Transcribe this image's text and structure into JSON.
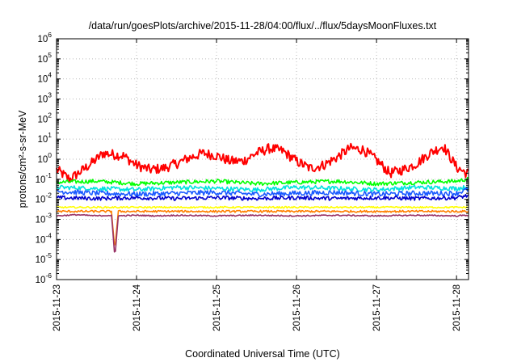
{
  "chart_data": {
    "type": "line",
    "title": "/data/run/goesPlots/archive/2015-11-28/04:00/flux/../flux/5daysMoonFluxes.txt",
    "xlabel": "Coordinated Universal Time (UTC)",
    "ylabel": "protons/cm²-s-sr-MeV",
    "y_scale": "log",
    "ylim": [
      1e-06,
      1000000.0
    ],
    "xlim_days_from_start": [
      0,
      5.15
    ],
    "y_ticks": [
      {
        "value": -6,
        "base": "10",
        "exp": "-6"
      },
      {
        "value": -5,
        "base": "10",
        "exp": "-5"
      },
      {
        "value": -4,
        "base": "10",
        "exp": "-4"
      },
      {
        "value": -3,
        "base": "10",
        "exp": "-3"
      },
      {
        "value": -2,
        "base": "10",
        "exp": "-2"
      },
      {
        "value": -1,
        "base": "10",
        "exp": "-1"
      },
      {
        "value": 0,
        "base": "10",
        "exp": "0"
      },
      {
        "value": 1,
        "base": "10",
        "exp": "1"
      },
      {
        "value": 2,
        "base": "10",
        "exp": "2"
      },
      {
        "value": 3,
        "base": "10",
        "exp": "3"
      },
      {
        "value": 4,
        "base": "10",
        "exp": "4"
      },
      {
        "value": 5,
        "base": "10",
        "exp": "5"
      },
      {
        "value": 6,
        "base": "10",
        "exp": "6"
      }
    ],
    "x_ticks": [
      "2015-11-23",
      "2015-11-24",
      "2015-11-25",
      "2015-11-26",
      "2015-11-27",
      "2015-11-28"
    ],
    "grid": true,
    "series": [
      {
        "color": "#ff0000",
        "x": [
          "2015-11-23 00:00",
          "2015-11-23 04:00",
          "2015-11-23 08:00",
          "2015-11-23 12:00",
          "2015-11-23 14:00",
          "2015-11-23 16:00",
          "2015-11-23 20:00",
          "2015-11-24 00:00",
          "2015-11-24 04:00",
          "2015-11-24 08:00",
          "2015-11-24 12:00",
          "2015-11-24 16:00",
          "2015-11-24 20:00",
          "2015-11-25 00:00",
          "2015-11-25 04:00",
          "2015-11-25 08:00",
          "2015-11-25 12:00",
          "2015-11-25 16:00",
          "2015-11-25 20:00",
          "2015-11-26 00:00",
          "2015-11-26 04:00",
          "2015-11-26 08:00",
          "2015-11-26 12:00",
          "2015-11-26 16:00",
          "2015-11-26 20:00",
          "2015-11-27 00:00",
          "2015-11-27 04:00",
          "2015-11-27 08:00",
          "2015-11-27 12:00",
          "2015-11-27 16:00",
          "2015-11-27 20:00",
          "2015-11-28 00:00",
          "2015-11-28 03:00"
        ],
        "values": [
          0.3,
          0.1,
          0.3,
          1.0,
          2.0,
          1.8,
          1.5,
          0.5,
          0.3,
          0.35,
          0.6,
          1.2,
          2.0,
          1.5,
          0.8,
          0.8,
          2.0,
          3.5,
          2.5,
          0.8,
          0.35,
          0.5,
          1.2,
          3.5,
          3.0,
          0.9,
          0.2,
          0.3,
          0.6,
          2.0,
          4.5,
          0.4,
          0.2
        ]
      },
      {
        "color": "#00ff00",
        "x": [
          "2015-11-23 00:00",
          "2015-11-23 12:00",
          "2015-11-24 00:00",
          "2015-11-24 12:00",
          "2015-11-25 00:00",
          "2015-11-25 12:00",
          "2015-11-26 00:00",
          "2015-11-26 12:00",
          "2015-11-27 00:00",
          "2015-11-27 12:00",
          "2015-11-28 00:00",
          "2015-11-28 03:00"
        ],
        "values": [
          0.07,
          0.08,
          0.06,
          0.07,
          0.08,
          0.06,
          0.07,
          0.08,
          0.06,
          0.07,
          0.08,
          0.1
        ]
      },
      {
        "color": "#00e0e0",
        "x": [
          "2015-11-23 00:00",
          "2015-11-23 12:00",
          "2015-11-24 00:00",
          "2015-11-24 12:00",
          "2015-11-25 00:00",
          "2015-11-25 12:00",
          "2015-11-26 00:00",
          "2015-11-26 12:00",
          "2015-11-27 00:00",
          "2015-11-27 12:00",
          "2015-11-28 00:00",
          "2015-11-28 03:00"
        ],
        "values": [
          0.04,
          0.035,
          0.03,
          0.04,
          0.035,
          0.03,
          0.04,
          0.035,
          0.03,
          0.04,
          0.035,
          0.04
        ]
      },
      {
        "color": "#1a5aff",
        "x": [
          "2015-11-23 00:00",
          "2015-11-23 12:00",
          "2015-11-24 00:00",
          "2015-11-24 12:00",
          "2015-11-25 00:00",
          "2015-11-25 12:00",
          "2015-11-26 00:00",
          "2015-11-26 12:00",
          "2015-11-27 00:00",
          "2015-11-27 12:00",
          "2015-11-28 00:00",
          "2015-11-28 03:00"
        ],
        "values": [
          0.025,
          0.02,
          0.018,
          0.02,
          0.022,
          0.018,
          0.02,
          0.022,
          0.018,
          0.02,
          0.02,
          0.03
        ]
      },
      {
        "color": "#0000cc",
        "x": [
          "2015-11-23 00:00",
          "2015-11-23 12:00",
          "2015-11-24 00:00",
          "2015-11-24 12:00",
          "2015-11-25 00:00",
          "2015-11-25 12:00",
          "2015-11-26 00:00",
          "2015-11-26 12:00",
          "2015-11-27 00:00",
          "2015-11-27 12:00",
          "2015-11-28 00:00",
          "2015-11-28 03:00"
        ],
        "values": [
          0.012,
          0.011,
          0.012,
          0.011,
          0.012,
          0.011,
          0.012,
          0.011,
          0.012,
          0.011,
          0.012,
          0.015
        ]
      },
      {
        "color": "#ffff00",
        "x": [
          "2015-11-23 00:00",
          "2015-11-23 12:00",
          "2015-11-24 00:00",
          "2015-11-24 12:00",
          "2015-11-25 00:00",
          "2015-11-25 12:00",
          "2015-11-26 00:00",
          "2015-11-26 12:00",
          "2015-11-27 00:00",
          "2015-11-27 12:00",
          "2015-11-28 00:00",
          "2015-11-28 03:00"
        ],
        "values": [
          0.004,
          0.004,
          0.004,
          0.004,
          0.004,
          0.004,
          0.004,
          0.004,
          0.004,
          0.004,
          0.004,
          0.004
        ]
      },
      {
        "color": "#ff8000",
        "x": [
          "2015-11-23 00:00",
          "2015-11-23 12:00",
          "2015-11-23 16:30",
          "2015-11-23 17:30",
          "2015-11-23 18:30",
          "2015-11-24 00:00",
          "2015-11-24 12:00",
          "2015-11-25 00:00",
          "2015-11-25 12:00",
          "2015-11-26 00:00",
          "2015-11-26 12:00",
          "2015-11-27 00:00",
          "2015-11-27 12:00",
          "2015-11-28 00:00",
          "2015-11-28 03:00"
        ],
        "values": [
          0.0025,
          0.0025,
          0.0025,
          3e-05,
          0.0025,
          0.0025,
          0.0025,
          0.0025,
          0.0025,
          0.0025,
          0.0025,
          0.0025,
          0.0025,
          0.0025,
          0.0025
        ]
      },
      {
        "color": "#993366",
        "x": [
          "2015-11-23 00:00",
          "2015-11-23 06:00",
          "2015-11-23 12:00",
          "2015-11-23 16:30",
          "2015-11-23 17:30",
          "2015-11-23 18:30",
          "2015-11-24 00:00",
          "2015-11-24 06:00",
          "2015-11-24 12:00",
          "2015-11-25 00:00",
          "2015-11-25 12:00",
          "2015-11-26 00:00",
          "2015-11-26 12:00",
          "2015-11-27 00:00",
          "2015-11-27 12:00",
          "2015-11-28 00:00",
          "2015-11-28 03:00"
        ],
        "values": [
          0.0015,
          0.0017,
          0.0015,
          0.0016,
          1.2e-05,
          0.0015,
          0.0016,
          0.0015,
          0.0016,
          0.0015,
          0.0016,
          0.0015,
          0.0016,
          0.0015,
          0.0016,
          0.0015,
          0.0016
        ]
      }
    ]
  }
}
